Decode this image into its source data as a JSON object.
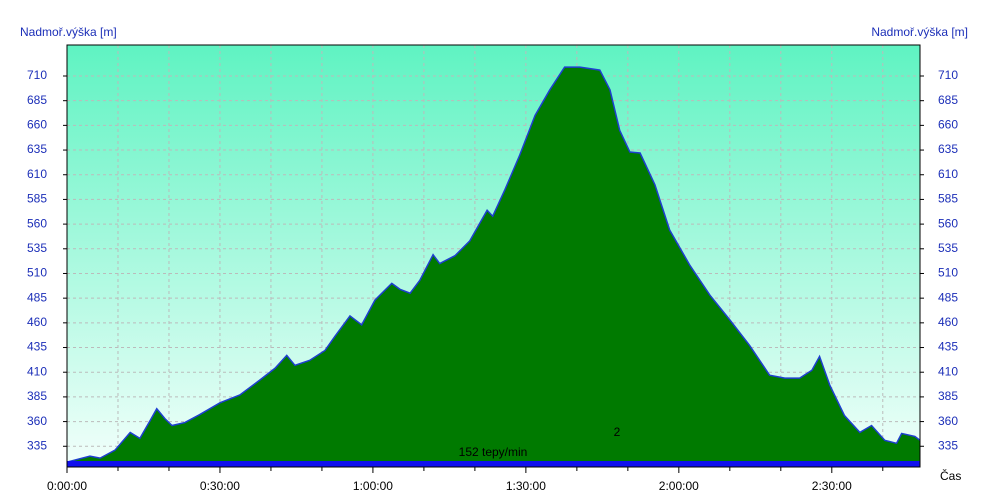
{
  "chart_data": {
    "type": "area",
    "y_label_left": "Nadmoř.výška [m]",
    "y_label_right": "Nadmoř.výška [m]",
    "x_label": "Čas",
    "x": [
      0,
      4.5,
      6.5,
      9.4,
      12.4,
      14.3,
      16.3,
      17.6,
      19.2,
      20.6,
      23.1,
      26,
      30,
      33.9,
      37.8,
      40.8,
      43.1,
      44.7,
      47.6,
      50.6,
      52.5,
      55.5,
      57.8,
      60.4,
      63.7,
      65.3,
      67.3,
      69.2,
      71.8,
      73.1,
      76.1,
      79,
      82.4,
      83.5,
      85.9,
      88.8,
      91.8,
      94.7,
      97.6,
      100.6,
      104.5,
      106.5,
      108.4,
      110.4,
      112.4,
      115.3,
      118.2,
      122.2,
      126.1,
      130,
      133.9,
      137.8,
      140.8,
      143.7,
      146.1,
      147.6,
      149.6,
      152.5,
      155.5,
      157.8,
      160.4,
      162.7,
      163.7,
      166.3,
      167.3
    ],
    "values": [
      319,
      325,
      323,
      331,
      349,
      343,
      361,
      373,
      363,
      356,
      359,
      367,
      379,
      387,
      402,
      414,
      427,
      417,
      422,
      432,
      446,
      467,
      458,
      483,
      500,
      494,
      490,
      503,
      529,
      520,
      528,
      543,
      574,
      568,
      595,
      630,
      670,
      696,
      719,
      719,
      716,
      696,
      655,
      633,
      632,
      600,
      554,
      518,
      488,
      463,
      437,
      407,
      404,
      404,
      412,
      426,
      397,
      366,
      349,
      356,
      341,
      338,
      348,
      345,
      341
    ],
    "fill_color": "#007a00",
    "line_color": "#1e3fd0",
    "xlim": [
      0,
      167.3
    ],
    "ylim": [
      314,
      741.4
    ],
    "y2lim": [
      314,
      741.4
    ],
    "xticks": [
      {
        "value": 0,
        "label": "0:00:00"
      },
      {
        "value": 30,
        "label": "0:30:00"
      },
      {
        "value": 60,
        "label": "1:00:00"
      },
      {
        "value": 90,
        "label": "1:30:00"
      },
      {
        "value": 120,
        "label": "2:00:00"
      },
      {
        "value": 150,
        "label": "2:30:00"
      }
    ],
    "xminorticks": [
      10,
      20,
      40,
      50,
      70,
      80,
      100,
      110,
      130,
      140,
      160
    ],
    "yticks": [
      335,
      360,
      385,
      410,
      435,
      460,
      485,
      510,
      535,
      560,
      585,
      610,
      635,
      660,
      685,
      710
    ],
    "y2ticks": [
      335,
      360,
      385,
      410,
      435,
      460,
      485,
      510,
      535,
      560,
      585,
      610,
      635,
      660,
      685,
      710
    ],
    "grid": true,
    "annotations": [
      "152 tepy/min",
      "2"
    ]
  }
}
